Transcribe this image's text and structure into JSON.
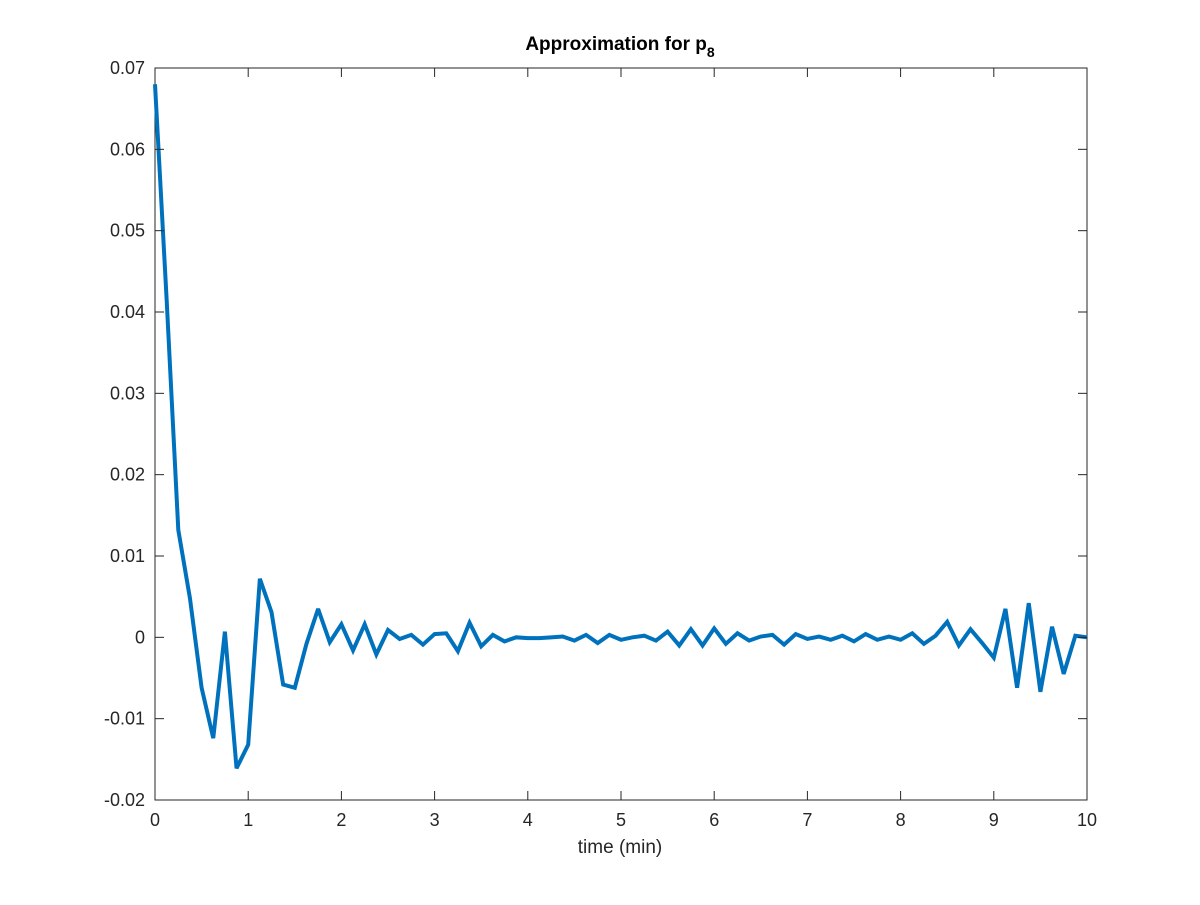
{
  "chart_data": {
    "type": "line",
    "title": "Approximation for p",
    "title_subscript": "8",
    "xlabel": "time (min)",
    "ylabel": "",
    "xlim": [
      0,
      10
    ],
    "ylim": [
      -0.02,
      0.07
    ],
    "xticks": [
      0,
      1,
      2,
      3,
      4,
      5,
      6,
      7,
      8,
      9,
      10
    ],
    "xtick_labels": [
      "0",
      "1",
      "2",
      "3",
      "4",
      "5",
      "6",
      "7",
      "8",
      "9",
      "10"
    ],
    "yticks": [
      -0.02,
      -0.01,
      0,
      0.01,
      0.02,
      0.03,
      0.04,
      0.05,
      0.06,
      0.07
    ],
    "ytick_labels": [
      "-0.02",
      "-0.01",
      "0",
      "0.01",
      "0.02",
      "0.03",
      "0.04",
      "0.05",
      "0.06",
      "0.07"
    ],
    "grid": false,
    "box": true,
    "series": [
      {
        "color": "#0072bd",
        "x": [
          0,
          0.125,
          0.25,
          0.375,
          0.5,
          0.625,
          0.75,
          0.875,
          1.0,
          1.125,
          1.25,
          1.375,
          1.5,
          1.625,
          1.75,
          1.875,
          2.0,
          2.125,
          2.25,
          2.375,
          2.5,
          2.625,
          2.75,
          2.875,
          3.0,
          3.125,
          3.25,
          3.375,
          3.5,
          3.625,
          3.75,
          3.875,
          4.0,
          4.125,
          4.25,
          4.375,
          4.5,
          4.625,
          4.75,
          4.875,
          5.0,
          5.125,
          5.25,
          5.375,
          5.5,
          5.625,
          5.75,
          5.875,
          6.0,
          6.125,
          6.25,
          6.375,
          6.5,
          6.625,
          6.75,
          6.875,
          7.0,
          7.125,
          7.25,
          7.375,
          7.5,
          7.625,
          7.75,
          7.875,
          8.0,
          8.125,
          8.25,
          8.375,
          8.5,
          8.625,
          8.75,
          8.875,
          9.0,
          9.125,
          9.25,
          9.375,
          9.5,
          9.625,
          9.75,
          9.875,
          10.0
        ],
        "y": [
          0.068,
          0.0415,
          0.0132,
          0.0048,
          -0.0062,
          -0.0124,
          0.0007,
          -0.0161,
          -0.0132,
          0.0072,
          0.0031,
          -0.0058,
          -0.0062,
          -0.0008,
          0.0035,
          -0.0006,
          0.0016,
          -0.0016,
          0.0016,
          -0.0021,
          0.0009,
          -0.0002,
          0.0003,
          -0.0009,
          0.0004,
          0.0005,
          -0.0017,
          0.0018,
          -0.0011,
          0.0003,
          -0.0005,
          0.0,
          -0.0001,
          -0.0001,
          0.0,
          0.0001,
          -0.0004,
          0.0003,
          -0.0007,
          0.0003,
          -0.0003,
          0.0,
          0.0002,
          -0.0004,
          0.0007,
          -0.001,
          0.001,
          -0.001,
          0.0011,
          -0.0008,
          0.0005,
          -0.0004,
          0.0001,
          0.0003,
          -0.0009,
          0.0004,
          -0.0002,
          0.0001,
          -0.0003,
          0.0002,
          -0.0005,
          0.0004,
          -0.0003,
          0.0001,
          -0.0003,
          0.0005,
          -0.0008,
          0.0002,
          0.0019,
          -0.001,
          0.001,
          -0.0007,
          -0.0025,
          0.0035,
          -0.0062,
          0.0042,
          -0.0067,
          0.0013,
          -0.0045,
          0.0002,
          0.0
        ]
      }
    ]
  }
}
